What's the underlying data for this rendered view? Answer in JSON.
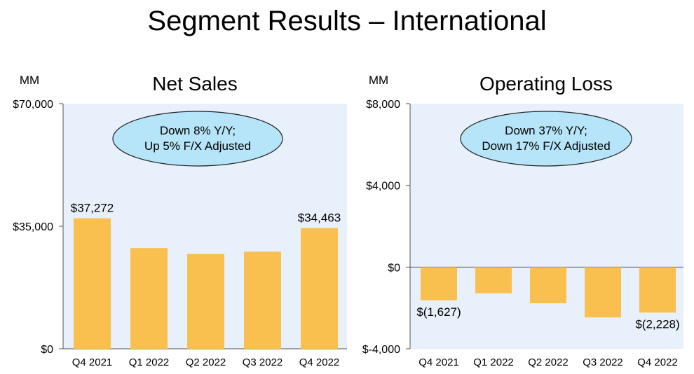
{
  "page": {
    "title": "Segment Results – International"
  },
  "chart_data": [
    {
      "type": "bar",
      "title": "Net Sales",
      "unit_label": "MM",
      "categories": [
        "Q4 2021",
        "Q1 2022",
        "Q2 2022",
        "Q3 2022",
        "Q4 2022"
      ],
      "values": [
        37272,
        28759,
        27065,
        27720,
        34463
      ],
      "data_labels": [
        "$37,272",
        "",
        "",
        "",
        "$34,463"
      ],
      "ylim": [
        0,
        70000
      ],
      "yticks": [
        0,
        35000,
        70000
      ],
      "ytick_labels": [
        "$0",
        "$35,000",
        "$70,000"
      ],
      "callout": [
        "Down 8% Y/Y;",
        "Up 5% F/X Adjusted"
      ],
      "grid": false,
      "colors": {
        "bar": "#f9bf4f",
        "plot_bg": "#e8f0fb",
        "callout_fill": "#b6e4f8",
        "axis": "#555555"
      }
    },
    {
      "type": "bar",
      "title": "Operating Loss",
      "unit_label": "MM",
      "categories": [
        "Q4 2021",
        "Q1 2022",
        "Q2 2022",
        "Q3 2022",
        "Q4 2022"
      ],
      "values": [
        -1627,
        -1281,
        -1771,
        -2465,
        -2228
      ],
      "data_labels": [
        "$(1,627)",
        "",
        "",
        "",
        "$(2,228)"
      ],
      "ylim": [
        -4000,
        8000
      ],
      "yticks": [
        -4000,
        0,
        4000,
        8000
      ],
      "ytick_labels": [
        "$-4,000",
        "$0",
        "$4,000",
        "$8,000"
      ],
      "callout": [
        "Down 37% Y/Y;",
        "Down 17% F/X Adjusted"
      ],
      "grid": false,
      "colors": {
        "bar": "#f9bf4f",
        "plot_bg": "#e8f0fb",
        "callout_fill": "#b6e4f8",
        "axis": "#555555"
      }
    }
  ]
}
